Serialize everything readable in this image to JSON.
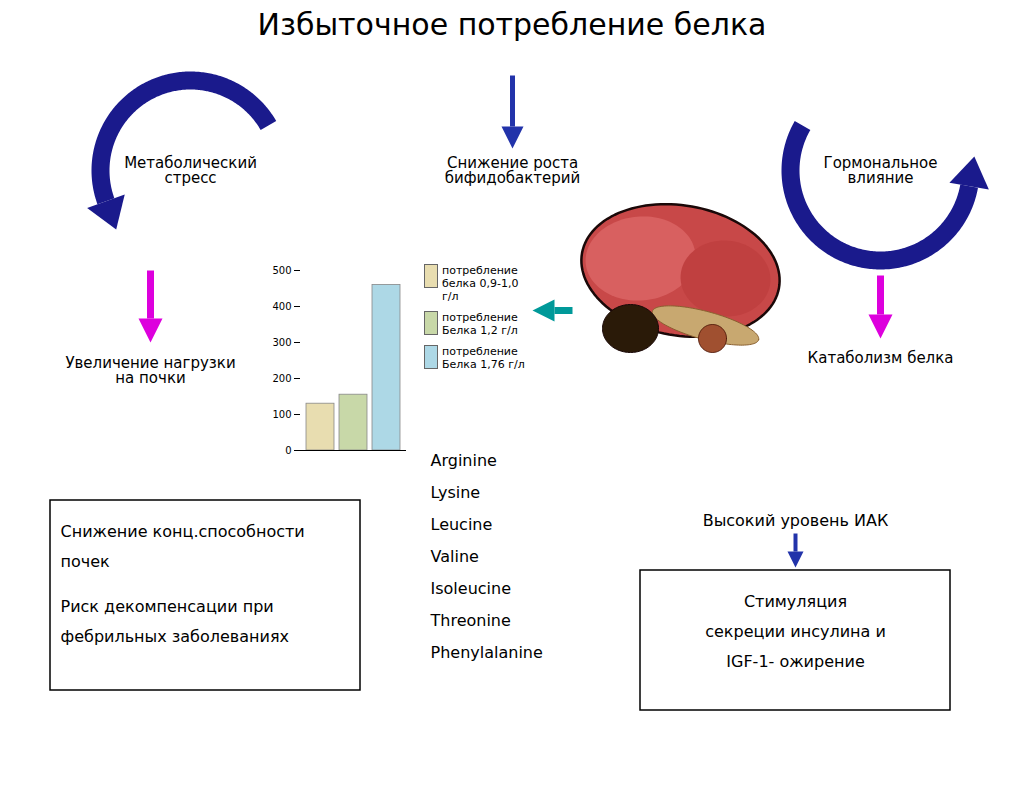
{
  "chart_data": {
    "type": "bar",
    "title": "Избыточное потребление белка",
    "categories": [
      null
    ],
    "series": [
      {
        "name": "потребление\nбелка 0,9-1,0\nг/л",
        "color": "#e8ddb0",
        "values": [
          130
        ]
      },
      {
        "name": "потребление\nБелка 1,2 г/л",
        "color": "#c8d8a8",
        "values": [
          155
        ]
      },
      {
        "name": "потребление\nБелка 1,76 г/л",
        "color": "#add8e6",
        "values": [
          460
        ]
      }
    ],
    "ylim": [
      0,
      500
    ],
    "yticks": [
      0,
      100,
      200,
      300,
      400,
      500
    ],
    "grid": false,
    "legend": "right",
    "tick_labels": "y",
    "annotations": [
      "Метаболический\nстресс",
      "Снижение роста\nбифидобактерий",
      "Гормональное\nвлияние",
      "Увеличение нагрузки\nна почки",
      "Катаболизм белка",
      "Снижение конц.способности",
      "почек",
      "Риск декомпенсации при",
      "фебрильных заболеваниях",
      "Arginine",
      "Lysine",
      "Leucine",
      "Valine",
      "Isoleucine",
      "Threonine",
      "Phenylalanine",
      "Высокий уровень ИАК",
      "Стимуляция",
      "секреции инсулина и",
      "IGF-1- ожирение"
    ]
  }
}
